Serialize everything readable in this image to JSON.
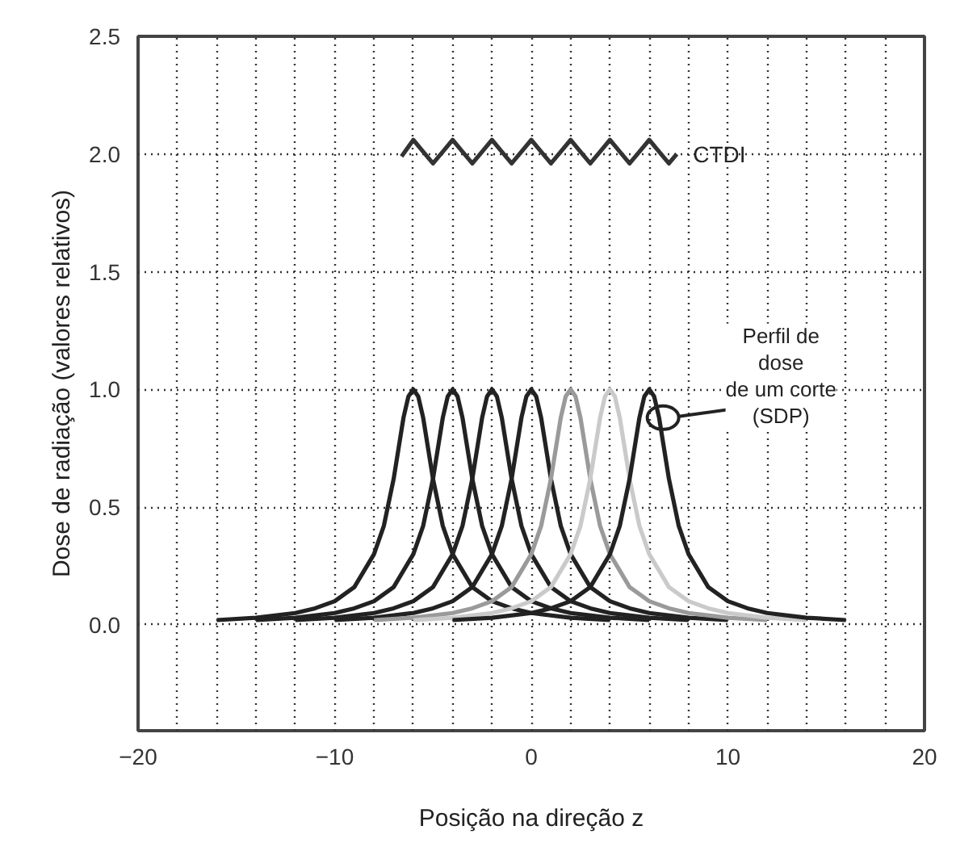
{
  "chart_data": {
    "type": "line",
    "xlabel": "Posição na direção z",
    "ylabel": "Dose de radiação (valores relativos)",
    "xlim": [
      -20,
      20
    ],
    "ylim": [
      -0.45,
      2.5
    ],
    "xticks": [
      -20,
      {
        "value": -18,
        "label": null
      },
      {
        "value": -16,
        "label": null
      },
      {
        "value": -14,
        "label": null
      },
      {
        "value": -12,
        "label": null
      },
      -10,
      {
        "value": -8,
        "label": null
      },
      {
        "value": -6,
        "label": null
      },
      {
        "value": -4,
        "label": null
      },
      {
        "value": -2,
        "label": null
      },
      0,
      {
        "value": 2,
        "label": null
      },
      {
        "value": 4,
        "label": null
      },
      {
        "value": 6,
        "label": null
      },
      {
        "value": 8,
        "label": null
      },
      10,
      {
        "value": 12,
        "label": null
      },
      {
        "value": 14,
        "label": null
      },
      {
        "value": 16,
        "label": null
      },
      {
        "value": 18,
        "label": null
      },
      20
    ],
    "yticks": [
      {
        "value": 0,
        "label": "0.0"
      },
      {
        "value": 0.5,
        "label": "0.5"
      },
      {
        "value": 1,
        "label": "1.0"
      },
      {
        "value": 1.5,
        "label": "1.5"
      },
      {
        "value": 2,
        "label": "2.0"
      },
      {
        "value": 2.5,
        "label": "2.5"
      }
    ],
    "grid": true,
    "marker": "none",
    "line_style": "solid",
    "series": [
      {
        "name": "CTDI",
        "color": "#333333",
        "x": [
          -6.6,
          -6.0,
          -5.5,
          -5.0,
          -4.5,
          -4.0,
          -3.5,
          -3.0,
          -2.5,
          -2.0,
          -1.5,
          -1.0,
          -0.5,
          0.0,
          0.5,
          1.0,
          1.5,
          2.0,
          2.5,
          3.0,
          3.5,
          4.0,
          4.5,
          5.0,
          5.5,
          6.0,
          6.5,
          7.0,
          7.4
        ],
        "values": [
          1.99,
          2.06,
          2.01,
          1.96,
          2.01,
          2.06,
          2.01,
          1.96,
          2.01,
          2.06,
          2.01,
          1.96,
          2.01,
          2.06,
          2.01,
          1.96,
          2.01,
          2.06,
          2.01,
          1.96,
          2.01,
          2.06,
          2.01,
          1.96,
          2.01,
          2.06,
          2.01,
          1.96,
          2.0
        ]
      },
      {
        "color": "#222222",
        "x": [
          -16,
          -14,
          -12,
          -11,
          -10,
          -9,
          -8,
          -7.5,
          -7,
          -6.5,
          -6.25,
          -6,
          -5.75,
          -5.5,
          -5,
          -4.5,
          -4,
          -3,
          -2,
          -1,
          0,
          2,
          4
        ],
        "values": [
          0.02,
          0.03,
          0.05,
          0.07,
          0.1,
          0.16,
          0.3,
          0.42,
          0.62,
          0.88,
          0.97,
          1.0,
          0.97,
          0.88,
          0.62,
          0.42,
          0.3,
          0.16,
          0.1,
          0.07,
          0.05,
          0.03,
          0.02
        ]
      },
      {
        "color": "#222222",
        "x": [
          -14,
          -12,
          -10,
          -9,
          -8,
          -7,
          -6,
          -5.5,
          -5,
          -4.5,
          -4.25,
          -4,
          -3.75,
          -3.5,
          -3,
          -2.5,
          -2,
          -1,
          0,
          1,
          2,
          4,
          6
        ],
        "values": [
          0.02,
          0.03,
          0.05,
          0.07,
          0.1,
          0.16,
          0.3,
          0.42,
          0.62,
          0.88,
          0.97,
          1.0,
          0.97,
          0.88,
          0.62,
          0.42,
          0.3,
          0.16,
          0.1,
          0.07,
          0.05,
          0.03,
          0.02
        ]
      },
      {
        "color": "#222222",
        "x": [
          -12,
          -10,
          -8,
          -7,
          -6,
          -5,
          -4,
          -3.5,
          -3,
          -2.5,
          -2.25,
          -2,
          -1.75,
          -1.5,
          -1,
          -0.5,
          0,
          1,
          2,
          3,
          4,
          6,
          8
        ],
        "values": [
          0.02,
          0.03,
          0.05,
          0.07,
          0.1,
          0.16,
          0.3,
          0.42,
          0.62,
          0.88,
          0.97,
          1.0,
          0.97,
          0.88,
          0.62,
          0.42,
          0.3,
          0.16,
          0.1,
          0.07,
          0.05,
          0.03,
          0.02
        ]
      },
      {
        "color": "#222222",
        "x": [
          -10,
          -8,
          -6,
          -5,
          -4,
          -3,
          -2,
          -1.5,
          -1,
          -0.5,
          -0.25,
          0,
          0.25,
          0.5,
          1,
          1.5,
          2,
          3,
          4,
          5,
          6,
          8,
          10
        ],
        "values": [
          0.02,
          0.03,
          0.05,
          0.07,
          0.1,
          0.16,
          0.3,
          0.42,
          0.62,
          0.88,
          0.97,
          1.0,
          0.97,
          0.88,
          0.62,
          0.42,
          0.3,
          0.16,
          0.1,
          0.07,
          0.05,
          0.03,
          0.02
        ]
      },
      {
        "color": "#9a9a9a",
        "x": [
          -8,
          -6,
          -4,
          -3,
          -2,
          -1,
          0,
          0.5,
          1,
          1.5,
          1.75,
          2,
          2.25,
          2.5,
          3,
          3.5,
          4,
          5,
          6,
          7,
          8,
          10,
          12
        ],
        "values": [
          0.02,
          0.03,
          0.05,
          0.07,
          0.1,
          0.16,
          0.3,
          0.42,
          0.62,
          0.88,
          0.97,
          1.0,
          0.97,
          0.88,
          0.62,
          0.42,
          0.3,
          0.16,
          0.1,
          0.07,
          0.05,
          0.03,
          0.02
        ]
      },
      {
        "color": "#cacaca",
        "x": [
          -6,
          -4,
          -2,
          -1,
          0,
          1,
          2,
          2.5,
          3,
          3.5,
          3.75,
          4,
          4.25,
          4.5,
          5,
          5.5,
          6,
          7,
          8,
          9,
          10,
          12,
          14
        ],
        "values": [
          0.02,
          0.03,
          0.05,
          0.07,
          0.1,
          0.16,
          0.3,
          0.42,
          0.62,
          0.88,
          0.97,
          1.0,
          0.97,
          0.88,
          0.62,
          0.42,
          0.3,
          0.16,
          0.1,
          0.07,
          0.05,
          0.03,
          0.02
        ]
      },
      {
        "color": "#222222",
        "x": [
          -4,
          -2,
          0,
          1,
          2,
          3,
          4,
          4.5,
          5,
          5.5,
          5.75,
          6,
          6.25,
          6.5,
          7,
          7.5,
          8,
          9,
          10,
          11,
          12,
          14,
          16
        ],
        "values": [
          0.02,
          0.03,
          0.05,
          0.07,
          0.1,
          0.16,
          0.3,
          0.42,
          0.62,
          0.88,
          0.97,
          1.0,
          0.97,
          0.88,
          0.62,
          0.42,
          0.3,
          0.16,
          0.1,
          0.07,
          0.05,
          0.03,
          0.02
        ]
      }
    ],
    "annotations": [
      {
        "text": "Perfil de\ndose\nde um corte\n(SDP)",
        "x": 6.7,
        "y": 0.88
      }
    ]
  }
}
